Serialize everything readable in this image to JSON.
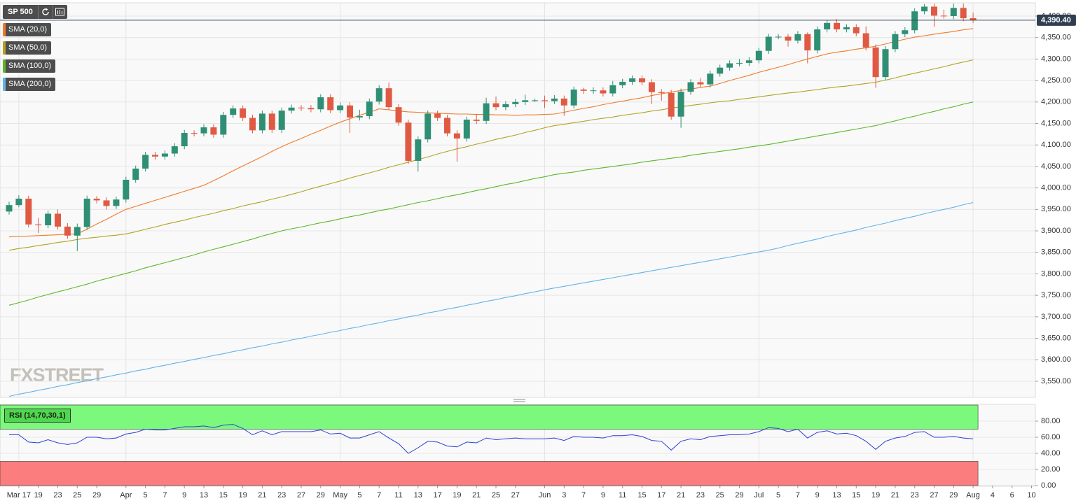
{
  "chart_data": [
    {
      "type": "candlestick",
      "title": "SP 500",
      "categories": [
        null,
        "Mar 17",
        null,
        "19",
        null,
        "23",
        null,
        "25",
        null,
        "29",
        null,
        null,
        "Apr",
        null,
        "5",
        null,
        "7",
        null,
        "9",
        null,
        "13",
        null,
        "15",
        null,
        "19",
        null,
        "21",
        null,
        "23",
        null,
        "27",
        null,
        "29",
        null,
        "May",
        null,
        "5",
        null,
        "7",
        null,
        "11",
        null,
        "13",
        null,
        "17",
        null,
        "19",
        null,
        "21",
        null,
        "25",
        null,
        "27",
        null,
        null,
        "Jun",
        null,
        "3",
        null,
        "7",
        null,
        "9",
        null,
        "11",
        null,
        "15",
        null,
        "17",
        null,
        "21",
        null,
        "23",
        null,
        "25",
        null,
        "29",
        null,
        "Jul",
        null,
        "5",
        null,
        "7",
        null,
        "9",
        null,
        "13",
        null,
        "15",
        null,
        "19",
        null,
        "21",
        null,
        "23",
        null,
        "27",
        null,
        "29",
        null,
        "Aug",
        null,
        "4",
        null,
        "6",
        null,
        "10"
      ],
      "open": [
        3945,
        3960,
        3975,
        3915,
        3913,
        3940,
        3910,
        3889,
        3909,
        3975,
        3971,
        3958,
        3973,
        4019,
        4045,
        4077,
        4073,
        4080,
        4097,
        4128,
        4127,
        4141,
        4124,
        4170,
        4185,
        4163,
        4134,
        4173,
        4135,
        4180,
        4187,
        4186,
        4183,
        4211,
        4181,
        4192,
        4164,
        4167,
        4201,
        4232,
        4188,
        4152,
        4063,
        4113,
        4173,
        4163,
        4127,
        4115,
        4159,
        4156,
        4197,
        4188,
        4195,
        4200,
        4204,
        4204,
        4202,
        4208,
        4192,
        4229,
        4226,
        4227,
        4220,
        4239,
        4247,
        4255,
        4246,
        4223,
        4221,
        4166,
        4224,
        4246,
        4241,
        4266,
        4280,
        4290,
        4291,
        4297,
        4319,
        4352,
        4352,
        4343,
        4358,
        4320,
        4369,
        4384,
        4369,
        4374,
        4360,
        4327,
        4258,
        4323,
        4358,
        4367,
        4411,
        4422,
        4401,
        4400,
        4419,
        4395,
        null,
        null,
        null,
        null,
        null,
        null
      ],
      "high": [
        3968,
        3983,
        3982,
        3930,
        3947,
        3950,
        3918,
        3917,
        3982,
        3981,
        3978,
        3980,
        4026,
        4052,
        4084,
        4084,
        4087,
        4104,
        4135,
        4134,
        4148,
        4148,
        4177,
        4192,
        4192,
        4170,
        4180,
        4180,
        4187,
        4194,
        4193,
        4193,
        4218,
        4218,
        4199,
        4199,
        4182,
        4208,
        4239,
        4245,
        4195,
        4159,
        4120,
        4180,
        4180,
        4170,
        4134,
        4166,
        4172,
        4210,
        4213,
        4202,
        4207,
        4217,
        4208,
        4215,
        4216,
        4215,
        4236,
        4233,
        4234,
        4234,
        4249,
        4254,
        4262,
        4262,
        4253,
        4230,
        4228,
        4231,
        4253,
        4256,
        4273,
        4287,
        4297,
        4300,
        4304,
        4326,
        4359,
        4358,
        4358,
        4365,
        4362,
        4376,
        4391,
        4393,
        4381,
        4381,
        4376,
        4334,
        4330,
        4365,
        4374,
        4418,
        4428,
        4429,
        4415,
        4429,
        4429,
        4408,
        null,
        null,
        null,
        null,
        null,
        null
      ],
      "low": [
        3938,
        3955,
        3908,
        3895,
        3906,
        3903,
        3882,
        3853,
        3902,
        3964,
        3950,
        3951,
        3966,
        4012,
        4038,
        4066,
        4066,
        4073,
        4090,
        4120,
        4120,
        4117,
        4117,
        4163,
        4156,
        4127,
        4127,
        4128,
        4128,
        4173,
        4179,
        4176,
        4176,
        4174,
        4174,
        4128,
        4157,
        4160,
        4194,
        4181,
        4145,
        4056,
        4038,
        4106,
        4156,
        4120,
        4061,
        4108,
        4149,
        4149,
        4181,
        4181,
        4188,
        4193,
        4200,
        4186,
        4195,
        4168,
        4185,
        4219,
        4219,
        4213,
        4213,
        4232,
        4240,
        4239,
        4195,
        4203,
        4159,
        4140,
        4217,
        4234,
        4234,
        4259,
        4273,
        4283,
        4284,
        4290,
        4312,
        4346,
        4329,
        4336,
        4290,
        4313,
        4362,
        4362,
        4362,
        4353,
        4320,
        4233,
        4251,
        4316,
        4351,
        4360,
        4404,
        4375,
        4394,
        4393,
        4388,
        4384,
        null,
        null,
        null,
        null,
        null,
        null
      ],
      "close": [
        3960,
        3975,
        3915,
        3913,
        3940,
        3910,
        3889,
        3909,
        3975,
        3971,
        3958,
        3973,
        4019,
        4045,
        4077,
        4073,
        4080,
        4097,
        4128,
        4127,
        4141,
        4124,
        4170,
        4185,
        4163,
        4134,
        4173,
        4135,
        4180,
        4187,
        4186,
        4183,
        4211,
        4181,
        4192,
        4164,
        4167,
        4201,
        4232,
        4188,
        4152,
        4063,
        4113,
        4173,
        4163,
        4127,
        4115,
        4159,
        4156,
        4197,
        4188,
        4195,
        4200,
        4204,
        4204,
        4202,
        4208,
        4192,
        4229,
        4226,
        4227,
        4220,
        4239,
        4247,
        4255,
        4246,
        4223,
        4221,
        4166,
        4224,
        4246,
        4241,
        4266,
        4280,
        4290,
        4291,
        4297,
        4319,
        4352,
        4352,
        4343,
        4358,
        4320,
        4369,
        4384,
        4369,
        4374,
        4360,
        4327,
        4258,
        4323,
        4358,
        4367,
        4411,
        4422,
        4401,
        4400,
        4419,
        4395,
        4390.4,
        null,
        null,
        null,
        null,
        null,
        null
      ],
      "up_color": "#2f8f74",
      "down_color": "#e05a43",
      "overlays": [
        {
          "name": "SMA (20,0)",
          "color": "#f07a2a",
          "values": [
            3886,
            3887,
            3888,
            3889,
            3890,
            3891,
            3892,
            3893,
            3904,
            3916,
            3927,
            3939,
            3950,
            3957,
            3964,
            3971,
            3978,
            3985,
            3992,
            3999,
            4006,
            4017,
            4028,
            4040,
            4051,
            4062,
            4073,
            4085,
            4096,
            4106,
            4115,
            4125,
            4134,
            4144,
            4153,
            4161,
            4169,
            4176,
            4184,
            4182,
            4179,
            4177,
            4176,
            4175,
            4174,
            4173,
            4172,
            4172,
            4171,
            4171,
            4170,
            4170,
            4169,
            4170,
            4170,
            4171,
            4172,
            4176,
            4181,
            4185,
            4189,
            4194,
            4198,
            4202,
            4206,
            4210,
            4215,
            4219,
            4223,
            4227,
            4230,
            4234,
            4237,
            4243,
            4250,
            4256,
            4262,
            4269,
            4275,
            4281,
            4287,
            4294,
            4300,
            4306,
            4312,
            4316,
            4319,
            4323,
            4326,
            4330,
            4335,
            4341,
            4346,
            4351,
            4354,
            4358,
            4361,
            4364,
            4368,
            4371,
            null,
            null,
            null,
            null,
            null,
            null
          ]
        },
        {
          "name": "SMA (50,0)",
          "color": "#b3a224",
          "values": [
            3855,
            3859,
            3862,
            3866,
            3869,
            3873,
            3876,
            3880,
            3883,
            3885,
            3888,
            3890,
            3893,
            3898,
            3904,
            3909,
            3915,
            3920,
            3925,
            3931,
            3936,
            3941,
            3947,
            3952,
            3958,
            3963,
            3968,
            3974,
            3979,
            3985,
            3991,
            3998,
            4004,
            4010,
            4016,
            4023,
            4029,
            4035,
            4041,
            4048,
            4054,
            4060,
            4066,
            4072,
            4079,
            4085,
            4091,
            4096,
            4102,
            4107,
            4113,
            4118,
            4123,
            4129,
            4134,
            4140,
            4145,
            4148,
            4152,
            4155,
            4159,
            4162,
            4165,
            4169,
            4172,
            4175,
            4179,
            4182,
            4186,
            4189,
            4192,
            4195,
            4198,
            4201,
            4203,
            4206,
            4209,
            4212,
            4215,
            4218,
            4221,
            4223,
            4226,
            4229,
            4232,
            4235,
            4237,
            4240,
            4243,
            4246,
            4251,
            4256,
            4262,
            4267,
            4272,
            4277,
            4282,
            4288,
            4293,
            4298,
            null,
            null,
            null,
            null,
            null,
            null
          ]
        },
        {
          "name": "SMA (100,0)",
          "color": "#5cb82a",
          "values": [
            3727,
            3733,
            3739,
            3746,
            3752,
            3758,
            3764,
            3770,
            3776,
            3783,
            3789,
            3795,
            3801,
            3807,
            3814,
            3820,
            3826,
            3832,
            3838,
            3844,
            3851,
            3857,
            3863,
            3869,
            3875,
            3881,
            3888,
            3894,
            3900,
            3905,
            3909,
            3914,
            3919,
            3923,
            3928,
            3933,
            3937,
            3942,
            3947,
            3951,
            3956,
            3961,
            3966,
            3970,
            3975,
            3980,
            3984,
            3989,
            3994,
            3998,
            4003,
            4008,
            4012,
            4017,
            4022,
            4026,
            4031,
            4034,
            4037,
            4041,
            4044,
            4047,
            4050,
            4053,
            4056,
            4060,
            4063,
            4066,
            4069,
            4072,
            4076,
            4079,
            4082,
            4085,
            4088,
            4091,
            4095,
            4098,
            4101,
            4105,
            4109,
            4113,
            4117,
            4121,
            4125,
            4129,
            4133,
            4137,
            4141,
            4145,
            4151,
            4156,
            4162,
            4167,
            4173,
            4178,
            4184,
            4189,
            4195,
            4200,
            null,
            null,
            null,
            null,
            null,
            null
          ]
        },
        {
          "name": "SMA (200,0)",
          "color": "#62b4ea",
          "values": [
            3515,
            3520,
            3524,
            3529,
            3533,
            3538,
            3542,
            3547,
            3551,
            3556,
            3560,
            3565,
            3569,
            3574,
            3578,
            3583,
            3587,
            3592,
            3596,
            3601,
            3605,
            3610,
            3614,
            3619,
            3623,
            3628,
            3632,
            3637,
            3641,
            3646,
            3650,
            3655,
            3659,
            3664,
            3668,
            3673,
            3677,
            3682,
            3686,
            3691,
            3695,
            3700,
            3704,
            3709,
            3713,
            3718,
            3722,
            3727,
            3731,
            3736,
            3740,
            3745,
            3749,
            3754,
            3758,
            3763,
            3767,
            3771,
            3775,
            3779,
            3783,
            3787,
            3791,
            3795,
            3799,
            3803,
            3807,
            3811,
            3815,
            3819,
            3823,
            3827,
            3831,
            3835,
            3839,
            3843,
            3847,
            3851,
            3855,
            3860,
            3866,
            3871,
            3876,
            3881,
            3887,
            3892,
            3897,
            3902,
            3908,
            3913,
            3918,
            3924,
            3929,
            3934,
            3940,
            3945,
            3950,
            3955,
            3961,
            3966,
            null,
            null,
            null,
            null,
            null,
            null
          ]
        }
      ],
      "ylim": [
        3512.5,
        4430.9
      ],
      "yticks": [
        {
          "value": 3550,
          "label": "3,550.00"
        },
        {
          "value": 3600,
          "label": "3,600.00"
        },
        {
          "value": 3650,
          "label": "3,650.00"
        },
        {
          "value": 3700,
          "label": "3,700.00"
        },
        {
          "value": 3750,
          "label": "3,750.00"
        },
        {
          "value": 3800,
          "label": "3,800.00"
        },
        {
          "value": 3850,
          "label": "3,850.00"
        },
        {
          "value": 3900,
          "label": "3,900.00"
        },
        {
          "value": 3950,
          "label": "3,950.00"
        },
        {
          "value": 4000,
          "label": "4,000.00"
        },
        {
          "value": 4050,
          "label": "4,050.00"
        },
        {
          "value": 4100,
          "label": "4,100.00"
        },
        {
          "value": 4150,
          "label": "4,150.00"
        },
        {
          "value": 4200,
          "label": "4,200.00"
        },
        {
          "value": 4250,
          "label": "4,250.00"
        },
        {
          "value": 4300,
          "label": "4,300.00"
        },
        {
          "value": 4350,
          "label": "4,350.00"
        },
        {
          "value": 4400,
          "label": "4,400.00"
        }
      ],
      "last_price": {
        "value": 4390.4,
        "label": "4,390.40"
      },
      "grid": true
    },
    {
      "type": "line",
      "series": [
        {
          "name": "RSI (14,70,30,1)",
          "color": "#2b3fd6",
          "values": [
            63,
            63,
            54,
            53,
            57,
            53,
            51,
            53,
            60,
            60,
            58,
            59,
            64,
            66,
            70,
            69,
            69,
            71,
            73,
            73,
            74,
            72,
            75,
            76,
            71,
            63,
            68,
            63,
            67,
            67,
            67,
            67,
            69,
            64,
            65,
            59,
            59,
            63,
            67,
            59,
            52,
            40,
            47,
            55,
            54,
            49,
            48,
            54,
            53,
            59,
            57,
            58,
            59,
            58,
            58,
            58,
            59,
            56,
            61,
            60,
            60,
            59,
            62,
            62,
            63,
            61,
            56,
            55,
            44,
            55,
            58,
            57,
            61,
            62,
            63,
            63,
            64,
            67,
            72,
            71,
            67,
            70,
            59,
            66,
            68,
            64,
            65,
            62,
            55,
            45,
            55,
            59,
            61,
            66,
            67,
            60,
            60,
            61,
            59,
            58,
            null,
            null,
            null,
            null,
            null,
            null
          ]
        }
      ],
      "bands": [
        {
          "from": 70,
          "to": 100,
          "color": "#7cf97c"
        },
        {
          "from": 0,
          "to": 30,
          "color": "#fb7d7d"
        }
      ],
      "ylim": [
        0,
        100
      ],
      "yticks": [
        {
          "value": 0,
          "label": "0.00"
        },
        {
          "value": 20,
          "label": "20.00"
        },
        {
          "value": 40,
          "label": "40.00"
        },
        {
          "value": 60,
          "label": "60.00"
        },
        {
          "value": 80,
          "label": "80.00"
        }
      ],
      "grid": true
    }
  ],
  "watermark": "FXSTREET"
}
